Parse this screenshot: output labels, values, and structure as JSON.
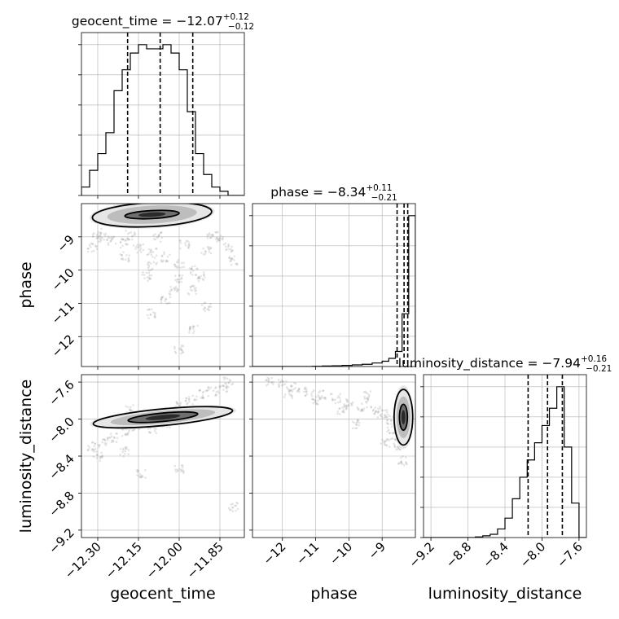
{
  "chart_data": {
    "type": "corner",
    "parameters": [
      "geocent_time",
      "phase",
      "luminosity_distance"
    ],
    "titles": [
      {
        "param": "geocent_time",
        "prefix": "geocent_time = ",
        "median": "−12.07",
        "plus": "+0.12",
        "minus": "−0.12"
      },
      {
        "param": "phase",
        "prefix": "phase = ",
        "median": "−8.34",
        "plus": "+0.11",
        "minus": "−0.21"
      },
      {
        "param": "luminosity_distance",
        "prefix": "luminosity_distance = ",
        "median": "−7.94",
        "plus": "+0.16",
        "minus": "−0.21"
      }
    ],
    "ranges": {
      "geocent_time": [
        -12.36,
        -11.76
      ],
      "phase": [
        -12.9,
        -8.0
      ],
      "luminosity_distance": [
        -9.28,
        -7.52
      ]
    },
    "ticks": {
      "geocent_time": [
        {
          "v": -12.3,
          "label": "−12.30"
        },
        {
          "v": -12.15,
          "label": "−12.15"
        },
        {
          "v": -12.0,
          "label": "−12.00"
        },
        {
          "v": -11.85,
          "label": "−11.85"
        }
      ],
      "phase": [
        {
          "v": -12,
          "label": "−12"
        },
        {
          "v": -11,
          "label": "−11"
        },
        {
          "v": -10,
          "label": "−10"
        },
        {
          "v": -9,
          "label": "−9"
        }
      ],
      "luminosity_distance": [
        {
          "v": -9.2,
          "label": "−9.2"
        },
        {
          "v": -8.8,
          "label": "−8.8"
        },
        {
          "v": -8.4,
          "label": "−8.4"
        },
        {
          "v": -8.0,
          "label": "−8.0"
        },
        {
          "v": -7.6,
          "label": "−7.6"
        }
      ]
    },
    "histograms": {
      "geocent_time": {
        "edges": [
          -12.36,
          -12.33,
          -12.3,
          -12.27,
          -12.24,
          -12.21,
          -12.18,
          -12.15,
          -12.12,
          -12.09,
          -12.06,
          -12.03,
          -12.0,
          -11.97,
          -11.94,
          -11.91,
          -11.88,
          -11.85,
          -11.82,
          -11.79,
          -11.76
        ],
        "counts": [
          2,
          6,
          10,
          15,
          25,
          30,
          34,
          36,
          35,
          35,
          36,
          34,
          30,
          20,
          10,
          5,
          2,
          1,
          0,
          0
        ],
        "quantiles": [
          -12.19,
          -12.07,
          -11.95
        ]
      },
      "phase": {
        "edges": [
          -12.9,
          -12.6,
          -12.3,
          -12.0,
          -11.7,
          -11.4,
          -11.1,
          -10.8,
          -10.5,
          -10.2,
          -9.9,
          -9.6,
          -9.3,
          -9.0,
          -8.8,
          -8.6,
          -8.4,
          -8.2,
          -8.0
        ],
        "counts": [
          0,
          0,
          0,
          0,
          0,
          0,
          0.2,
          0.4,
          0.6,
          0.9,
          1.3,
          1.8,
          2.8,
          4.2,
          6.5,
          12,
          42,
          120
        ],
        "quantiles": [
          -8.55,
          -8.34,
          -8.23
        ]
      },
      "luminosity_distance": {
        "edges": [
          -9.28,
          -9.2,
          -9.12,
          -9.04,
          -8.96,
          -8.88,
          -8.8,
          -8.72,
          -8.64,
          -8.56,
          -8.48,
          -8.4,
          -8.32,
          -8.24,
          -8.16,
          -8.08,
          -8.0,
          -7.92,
          -7.84,
          -7.76,
          -7.68,
          -7.6,
          -7.52
        ],
        "counts": [
          0,
          0,
          0,
          0,
          0,
          0,
          0,
          0.3,
          0.8,
          1.5,
          4,
          9,
          18,
          28,
          36,
          44,
          52,
          60,
          70,
          42,
          16,
          0
        ],
        "quantiles": [
          -8.15,
          -7.94,
          -7.78
        ]
      }
    },
    "density_panels": {
      "geocent_time_vs_phase": {
        "x": "geocent_time",
        "y": "phase",
        "scatter": [
          [
            -12.3,
            -8.9
          ],
          [
            -12.25,
            -9.1
          ],
          [
            -12.2,
            -9.2
          ],
          [
            -12.15,
            -9.35
          ],
          [
            -12.1,
            -9.5
          ],
          [
            -12.05,
            -9.6
          ],
          [
            -12.0,
            -9.8
          ],
          [
            -11.95,
            -10.0
          ],
          [
            -12.0,
            -10.3
          ],
          [
            -11.95,
            -10.6
          ],
          [
            -12.05,
            -10.9
          ],
          [
            -11.9,
            -11.1
          ],
          [
            -12.1,
            -11.3
          ],
          [
            -11.95,
            -11.8
          ],
          [
            -12.0,
            -12.4
          ],
          [
            -12.2,
            -9.6
          ],
          [
            -12.1,
            -9.9
          ],
          [
            -11.9,
            -9.4
          ],
          [
            -11.85,
            -9.0
          ],
          [
            -12.32,
            -9.3
          ],
          [
            -12.28,
            -9.0
          ],
          [
            -12.18,
            -8.95
          ],
          [
            -12.08,
            -9.0
          ],
          [
            -11.98,
            -9.2
          ],
          [
            -11.88,
            -8.95
          ],
          [
            -12.12,
            -10.2
          ],
          [
            -12.02,
            -10.6
          ],
          [
            -11.92,
            -10.2
          ],
          [
            -11.8,
            -9.7
          ],
          [
            -11.82,
            -9.3
          ]
        ],
        "contour_center": [
          -12.1,
          -8.33
        ],
        "contour_outer_half_width": [
          0.22,
          0.36
        ],
        "contour_inner_half_width": [
          0.1,
          0.12
        ],
        "contour_tilt_deg": -3
      },
      "geocent_time_vs_luminosity_distance": {
        "x": "geocent_time",
        "y": "luminosity_distance",
        "scatter": [
          [
            -12.32,
            -8.3
          ],
          [
            -12.28,
            -8.25
          ],
          [
            -12.24,
            -8.2
          ],
          [
            -12.2,
            -8.15
          ],
          [
            -12.16,
            -8.08
          ],
          [
            -12.12,
            -8.02
          ],
          [
            -12.08,
            -7.98
          ],
          [
            -12.04,
            -7.92
          ],
          [
            -12.0,
            -7.86
          ],
          [
            -11.96,
            -7.8
          ],
          [
            -11.92,
            -7.74
          ],
          [
            -11.88,
            -7.7
          ],
          [
            -11.84,
            -7.68
          ],
          [
            -12.1,
            -8.1
          ],
          [
            -12.05,
            -8.05
          ],
          [
            -11.95,
            -7.92
          ],
          [
            -12.2,
            -8.35
          ],
          [
            -12.3,
            -8.4
          ],
          [
            -12.0,
            -8.55
          ],
          [
            -12.18,
            -7.9
          ],
          [
            -12.14,
            -8.6
          ],
          [
            -11.8,
            -8.95
          ],
          [
            -11.82,
            -7.6
          ]
        ],
        "contour_center": [
          -12.06,
          -7.98
        ],
        "contour_outer_half_width": [
          0.27,
          0.09
        ],
        "contour_inner_half_width": [
          0.13,
          0.045
        ],
        "contour_slope": 1.55
      },
      "phase_vs_luminosity_distance": {
        "x": "phase",
        "y": "luminosity_distance",
        "scatter": [
          [
            -12.4,
            -7.6
          ],
          [
            -12.0,
            -7.62
          ],
          [
            -11.6,
            -7.66
          ],
          [
            -11.2,
            -7.7
          ],
          [
            -10.8,
            -7.74
          ],
          [
            -10.4,
            -7.78
          ],
          [
            -10.0,
            -7.82
          ],
          [
            -9.6,
            -7.86
          ],
          [
            -9.2,
            -7.9
          ],
          [
            -9.0,
            -7.95
          ],
          [
            -8.8,
            -8.0
          ],
          [
            -8.7,
            -8.1
          ],
          [
            -8.6,
            -8.2
          ],
          [
            -8.5,
            -8.3
          ],
          [
            -8.4,
            -8.45
          ],
          [
            -9.4,
            -7.75
          ],
          [
            -10.2,
            -7.9
          ],
          [
            -11.0,
            -7.8
          ],
          [
            -9.8,
            -8.05
          ],
          [
            -8.9,
            -8.25
          ],
          [
            -11.8,
            -7.72
          ]
        ],
        "contour_center": [
          -8.36,
          -7.98
        ],
        "contour_outer_half_width": [
          0.28,
          0.3
        ],
        "contour_inner_half_width": [
          0.12,
          0.14
        ]
      }
    },
    "xlabels": [
      "geocent_time",
      "phase",
      "luminosity_distance"
    ],
    "ylabels": [
      "",
      "phase",
      "luminosity_distance"
    ],
    "grid": true
  }
}
